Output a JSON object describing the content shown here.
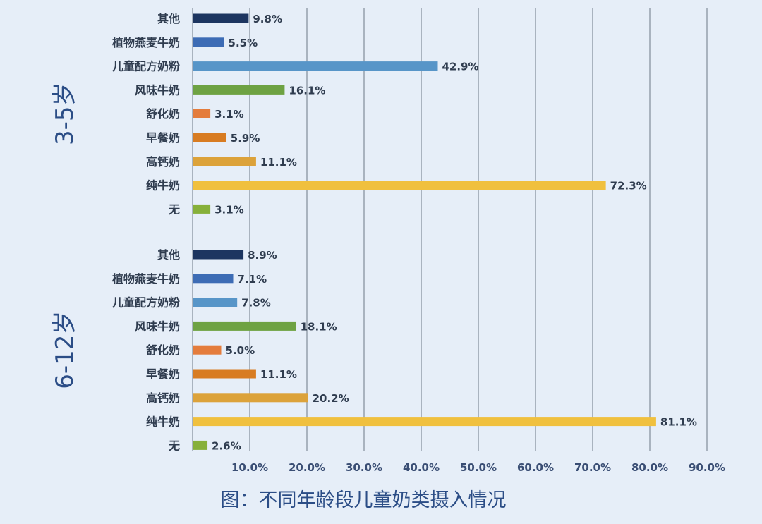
{
  "chart_data": {
    "type": "bar",
    "orientation": "horizontal",
    "categories": [
      "其他",
      "植物燕麦牛奶",
      "儿童配方奶粉",
      "风味牛奶",
      "舒化奶",
      "早餐奶",
      "高钙奶",
      "纯牛奶",
      "无"
    ],
    "colors": [
      "#1c3560",
      "#3d6cb5",
      "#5795c8",
      "#6ea243",
      "#e47c3c",
      "#d87c22",
      "#dca23a",
      "#f0c03e",
      "#86b03a"
    ],
    "groups": [
      {
        "label": "3-5岁",
        "values": [
          9.8,
          5.5,
          42.9,
          16.1,
          3.1,
          5.9,
          11.1,
          72.3,
          3.1
        ],
        "value_labels": [
          "9.8%",
          "5.5%",
          "42.9%",
          "16.1%",
          "3.1%",
          "5.9%",
          "11.1%",
          "72.3%",
          "3.1%"
        ]
      },
      {
        "label": "6-12岁",
        "values": [
          8.9,
          7.1,
          7.8,
          18.1,
          5.0,
          11.1,
          20.2,
          81.1,
          2.6
        ],
        "value_labels": [
          "8.9%",
          "7.1%",
          "7.8%",
          "18.1%",
          "5.0%",
          "11.1%",
          "20.2%",
          "81.1%",
          "2.6%"
        ]
      }
    ],
    "x_ticks": [
      10,
      20,
      30,
      40,
      50,
      60,
      70,
      80,
      90
    ],
    "x_tick_labels": [
      "10.0%",
      "20.0%",
      "30.0%",
      "40.0%",
      "50.0%",
      "60.0%",
      "70.0%",
      "80.0%",
      "90.0%"
    ],
    "xlim": [
      0,
      90
    ],
    "grid": true,
    "caption": "图：不同年龄段儿童奶类摄入情况"
  }
}
